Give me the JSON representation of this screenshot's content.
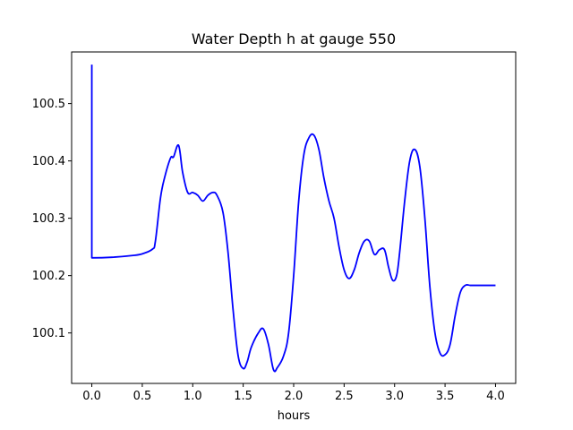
{
  "chart_data": {
    "type": "line",
    "title": "Water Depth h at gauge 550",
    "xlabel": "hours",
    "ylabel": "",
    "xlim": [
      -0.2,
      4.2
    ],
    "ylim": [
      100.012,
      100.59
    ],
    "xticks": [
      0.0,
      0.5,
      1.0,
      1.5,
      2.0,
      2.5,
      3.0,
      3.5,
      4.0
    ],
    "xtick_labels": [
      "0.0",
      "0.5",
      "1.0",
      "1.5",
      "2.0",
      "2.5",
      "3.0",
      "3.5",
      "4.0"
    ],
    "yticks": [
      100.1,
      100.2,
      100.3,
      100.4,
      100.5
    ],
    "ytick_labels": [
      "100.1",
      "100.2",
      "100.3",
      "100.4",
      "100.5"
    ],
    "grid": false,
    "series": [
      {
        "color": "#0000ff",
        "x": [
          0.0,
          0.0,
          0.0,
          0.2,
          0.4,
          0.5,
          0.6,
          0.63,
          0.68,
          0.72,
          0.78,
          0.81,
          0.86,
          0.9,
          0.95,
          1.0,
          1.05,
          1.1,
          1.15,
          1.2,
          1.24,
          1.3,
          1.35,
          1.4,
          1.45,
          1.5,
          1.54,
          1.58,
          1.65,
          1.7,
          1.75,
          1.8,
          1.84,
          1.9,
          1.95,
          2.0,
          2.05,
          2.1,
          2.15,
          2.2,
          2.25,
          2.3,
          2.35,
          2.4,
          2.45,
          2.5,
          2.55,
          2.6,
          2.65,
          2.7,
          2.75,
          2.8,
          2.85,
          2.9,
          2.94,
          2.98,
          3.02,
          3.05,
          3.1,
          3.15,
          3.2,
          3.25,
          3.3,
          3.35,
          3.4,
          3.45,
          3.5,
          3.55,
          3.6,
          3.65,
          3.7,
          3.75,
          3.8,
          3.85,
          3.9,
          3.95,
          4.0
        ],
        "y": [
          100.568,
          100.232,
          100.231,
          100.232,
          100.235,
          100.238,
          100.246,
          100.26,
          100.335,
          100.37,
          100.405,
          100.407,
          100.427,
          100.38,
          100.345,
          100.345,
          100.34,
          100.33,
          100.34,
          100.345,
          100.34,
          100.31,
          100.24,
          100.14,
          100.06,
          100.038,
          100.05,
          100.075,
          100.1,
          100.107,
          100.08,
          100.036,
          100.04,
          100.06,
          100.1,
          100.2,
          100.33,
          100.41,
          100.44,
          100.445,
          100.42,
          100.37,
          100.33,
          100.3,
          100.25,
          100.21,
          100.195,
          100.21,
          100.24,
          100.26,
          100.26,
          100.237,
          100.245,
          100.245,
          100.215,
          100.192,
          100.2,
          100.24,
          100.33,
          100.4,
          100.42,
          100.39,
          100.3,
          100.18,
          100.1,
          100.065,
          100.062,
          100.08,
          100.13,
          100.17,
          100.183,
          100.183,
          100.183,
          100.183,
          100.183,
          100.183,
          100.183
        ]
      }
    ]
  }
}
